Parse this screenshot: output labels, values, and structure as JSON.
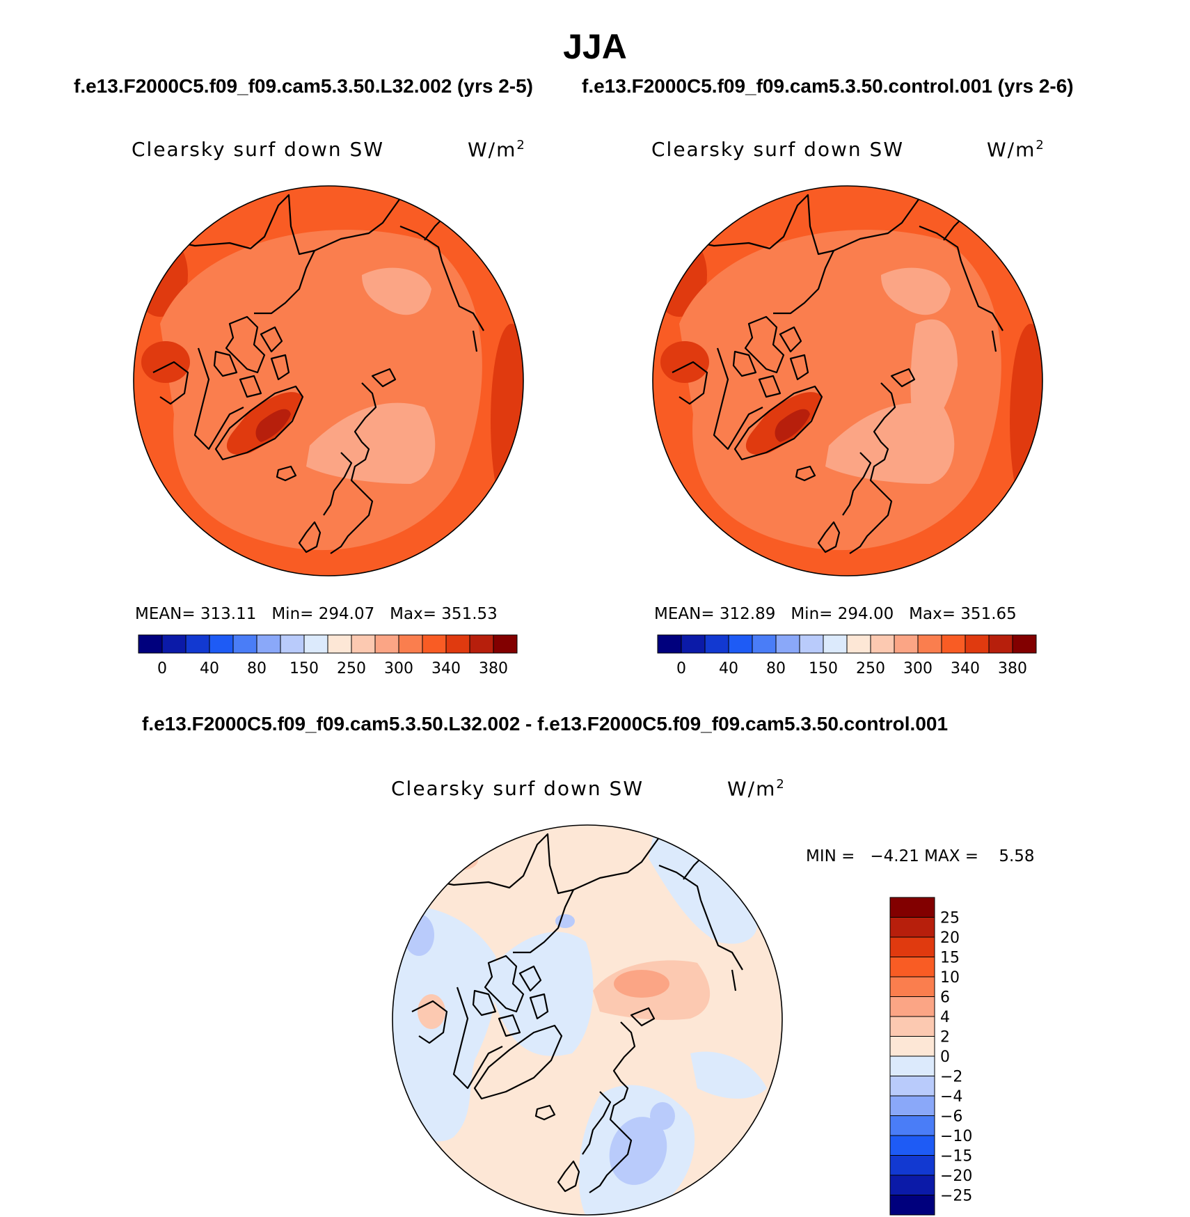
{
  "figure": {
    "title": "JJA",
    "case_left": "f.e13.F2000C5.f09_f09.cam5.3.50.L32.002 (yrs 2-5)",
    "case_right": "f.e13.F2000C5.f09_f09.cam5.3.50.control.001 (yrs 2-6)",
    "diff_title": "f.e13.F2000C5.f09_f09.cam5.3.50.L32.002 - f.e13.F2000C5.f09_f09.cam5.3.50.control.001"
  },
  "colors": {
    "abs_scale": [
      "#00007d",
      "#0b1aa8",
      "#1239d1",
      "#1e5bf5",
      "#4a7df7",
      "#8aa8f9",
      "#b9cbfb",
      "#dceafc",
      "#fde7d6",
      "#fcc9b1",
      "#fba585",
      "#fa7e4e",
      "#f95c24",
      "#e03a0f",
      "#b71f0c",
      "#820000"
    ],
    "diff_scale": [
      "#00007d",
      "#0b1aa8",
      "#1239d1",
      "#1e5bf5",
      "#4a7df7",
      "#8aa8f9",
      "#b9cbfb",
      "#dceafc",
      "#fde7d6",
      "#fcc9b1",
      "#fba585",
      "#fa7e4e",
      "#f95c24",
      "#e03a0f",
      "#b71f0c",
      "#820000"
    ],
    "coastline": "#000000"
  },
  "chart_data": [
    {
      "type": "heatmap",
      "projection": "north-polar-stereographic",
      "title": "Clearsky surf down SW",
      "units_base": "W/m",
      "units_exp": "2",
      "stats": {
        "mean_label": "MEAN=",
        "mean": "313.11",
        "min_label": "Min=",
        "min": "294.07",
        "max_label": "Max=",
        "max": "351.53"
      },
      "colorbar": {
        "orientation": "horizontal",
        "levels": [
          0,
          20,
          40,
          60,
          80,
          100,
          150,
          200,
          250,
          275,
          300,
          320,
          340,
          360,
          380
        ],
        "tick_labels": [
          "0",
          "40",
          "80",
          "150",
          "250",
          "300",
          "340",
          "380"
        ]
      }
    },
    {
      "type": "heatmap",
      "projection": "north-polar-stereographic",
      "title": "Clearsky surf down SW",
      "units_base": "W/m",
      "units_exp": "2",
      "stats": {
        "mean_label": "MEAN=",
        "mean": "312.89",
        "min_label": "Min=",
        "min": "294.00",
        "max_label": "Max=",
        "max": "351.65"
      },
      "colorbar": {
        "orientation": "horizontal",
        "levels": [
          0,
          20,
          40,
          60,
          80,
          100,
          150,
          200,
          250,
          275,
          300,
          320,
          340,
          360,
          380
        ],
        "tick_labels": [
          "0",
          "40",
          "80",
          "150",
          "250",
          "300",
          "340",
          "380"
        ]
      }
    },
    {
      "type": "heatmap",
      "projection": "north-polar-stereographic",
      "title": "Clearsky surf down SW",
      "units_base": "W/m",
      "units_exp": "2",
      "stats": {
        "min_label": "MIN =",
        "min": "−4.21",
        "max_label": "MAX =",
        "max": "5.58"
      },
      "colorbar": {
        "orientation": "vertical",
        "levels": [
          25,
          20,
          15,
          10,
          6,
          4,
          2,
          0,
          -2,
          -4,
          -6,
          -10,
          -15,
          -20,
          -25
        ],
        "tick_labels": [
          "25",
          "20",
          "15",
          "10",
          "6",
          "4",
          "2",
          "0",
          "−2",
          "−4",
          "−6",
          "−10",
          "−15",
          "−20",
          "−25"
        ]
      }
    }
  ]
}
